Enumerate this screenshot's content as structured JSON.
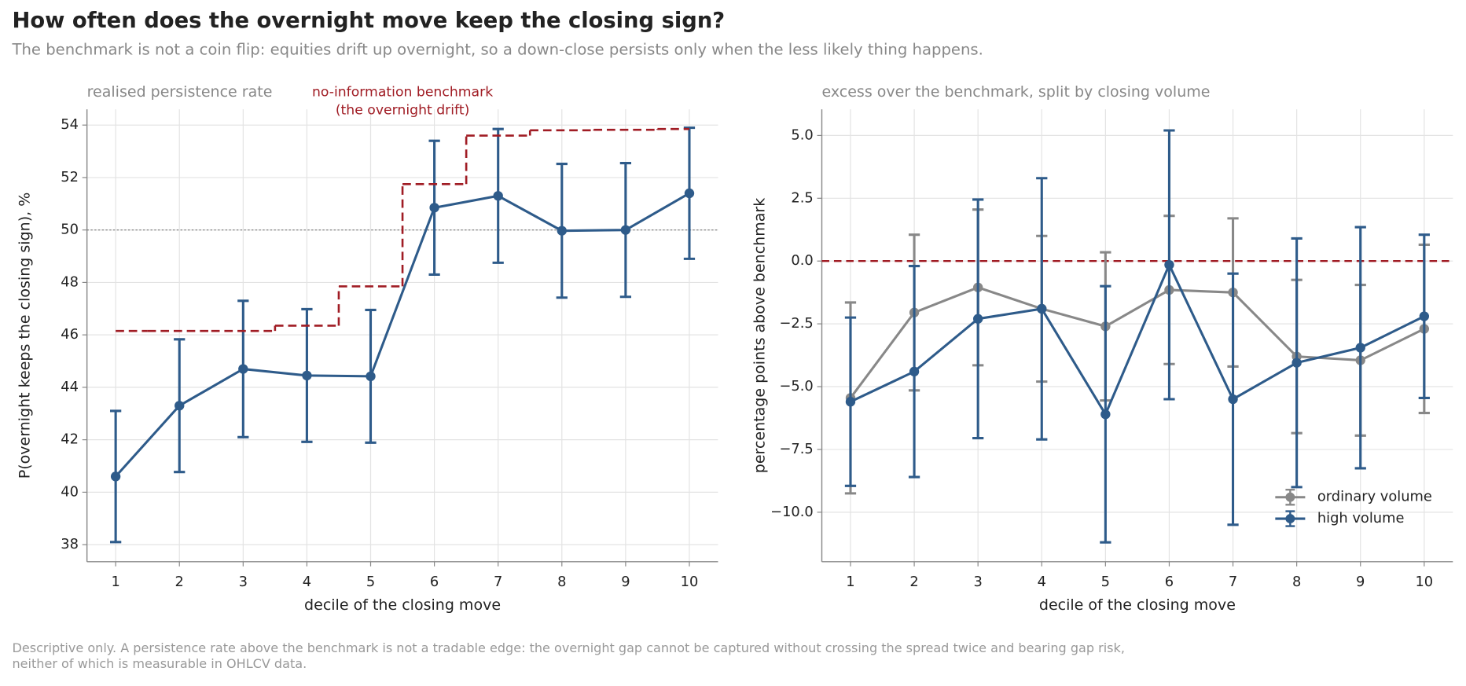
{
  "title": "How often does the overnight move keep the closing sign?",
  "subtitle": "The benchmark is not a coin flip: equities drift up overnight, so a down-close persists only when the less likely thing happens.",
  "note": [
    "Descriptive only. A persistence rate above the benchmark is not a tradable edge: the overnight gap cannot be captured without crossing the spread twice and bearing gap risk,",
    "neither of which is measurable in OHLCV data."
  ],
  "chart_data": [
    {
      "type": "line",
      "title": "realised persistence rate",
      "xlabel": "decile of the closing move",
      "ylabel": "P(overnight keeps the closing sign), %",
      "x": [
        1,
        2,
        3,
        4,
        5,
        6,
        7,
        8,
        9,
        10
      ],
      "xlim": [
        0.55,
        10.45
      ],
      "xticks": [
        1,
        2,
        3,
        4,
        5,
        6,
        7,
        8,
        9,
        10
      ],
      "ylim": [
        37.35,
        54.6
      ],
      "yticks": [
        38,
        40,
        42,
        44,
        46,
        48,
        50,
        52,
        54
      ],
      "grid": true,
      "hline": {
        "value": 50,
        "color": "#777777",
        "style": "dotted"
      },
      "annotation": {
        "x": 5.5,
        "color": "#a01c24",
        "lines": [
          "no-information benchmark",
          "(the overnight drift)"
        ]
      },
      "series": [
        {
          "color": "#2e5b8a",
          "marker": true,
          "values": [
            40.6,
            43.3,
            44.7,
            44.45,
            44.42,
            50.85,
            51.3,
            49.97,
            50.0,
            51.4
          ],
          "errors": [
            2.5,
            2.53,
            2.6,
            2.53,
            2.53,
            2.55,
            2.55,
            2.55,
            2.55,
            2.5
          ]
        },
        {
          "color": "#a01c24",
          "step": "mid",
          "dashed": true,
          "values": [
            46.15,
            46.15,
            46.15,
            46.35,
            47.85,
            51.75,
            53.6,
            53.8,
            53.82,
            53.85
          ]
        }
      ]
    },
    {
      "type": "line",
      "title": "excess over the benchmark, split by closing volume",
      "xlabel": "decile of the closing move",
      "ylabel": "percentage points above benchmark",
      "x": [
        1,
        2,
        3,
        4,
        5,
        6,
        7,
        8,
        9,
        10
      ],
      "xlim": [
        0.55,
        10.45
      ],
      "xticks": [
        1,
        2,
        3,
        4,
        5,
        6,
        7,
        8,
        9,
        10
      ],
      "ylim": [
        -11.97,
        6.04
      ],
      "yticks": [
        {
          "value": -10,
          "label": "−10.0"
        },
        {
          "value": -7.5,
          "label": "−7.5"
        },
        {
          "value": -5,
          "label": "−5.0"
        },
        {
          "value": -2.5,
          "label": "−2.5"
        },
        {
          "value": 0,
          "label": "0.0"
        },
        {
          "value": 2.5,
          "label": "2.5"
        },
        {
          "value": 5,
          "label": "5.0"
        }
      ],
      "grid": true,
      "legend": "lower right",
      "hline": {
        "value": 0,
        "color": "#a01c24",
        "style": "dashed"
      },
      "series": [
        {
          "name": "ordinary volume",
          "color": "#888888",
          "marker": true,
          "values": [
            -5.45,
            -2.05,
            -1.05,
            -1.9,
            -2.6,
            -1.15,
            -1.25,
            -3.8,
            -3.95,
            -2.7
          ],
          "errors": [
            3.8,
            3.1,
            3.1,
            2.9,
            2.95,
            2.95,
            2.95,
            3.05,
            3.0,
            3.35
          ]
        },
        {
          "name": "high volume",
          "color": "#2e5b8a",
          "marker": true,
          "values": [
            -5.6,
            -4.4,
            -2.3,
            -1.9,
            -6.1,
            -0.15,
            -5.5,
            -4.05,
            -3.45,
            -2.2
          ],
          "errors": [
            3.35,
            4.2,
            4.75,
            5.2,
            5.1,
            5.35,
            5.0,
            4.95,
            4.8,
            3.25
          ]
        }
      ]
    }
  ]
}
